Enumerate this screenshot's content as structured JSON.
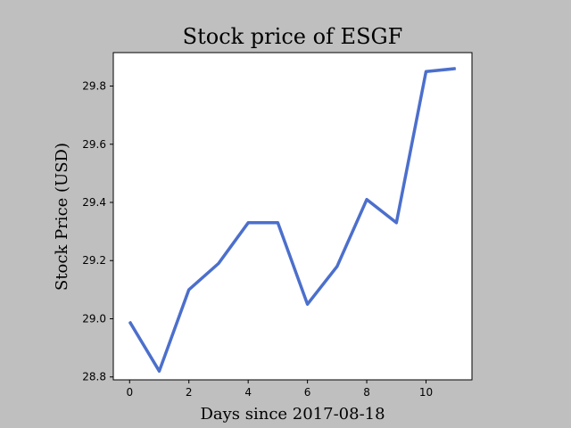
{
  "chart_data": {
    "type": "line",
    "title": "Stock price of ESGF",
    "xlabel": "Days since 2017-08-18",
    "ylabel": "Stock Price (USD)",
    "xlim": [
      -0.55,
      11.55
    ],
    "ylim": [
      28.79,
      29.915
    ],
    "xticks": [
      0,
      2,
      4,
      6,
      8,
      10
    ],
    "yticks": [
      28.8,
      29.0,
      29.2,
      29.4,
      29.6,
      29.8
    ],
    "xtick_labels": [
      "0",
      "2",
      "4",
      "6",
      "8",
      "10"
    ],
    "ytick_labels": [
      "28.8",
      "29.0",
      "29.2",
      "29.4",
      "29.6",
      "29.8"
    ],
    "grid": false,
    "series": [
      {
        "color": "#4c6fcc",
        "x": [
          0,
          1,
          2,
          3,
          4,
          5,
          6,
          7,
          8,
          9,
          10,
          11
        ],
        "y": [
          28.99,
          28.82,
          29.1,
          29.19,
          29.33,
          29.33,
          29.05,
          29.18,
          29.41,
          29.33,
          29.85,
          29.86
        ]
      }
    ]
  },
  "colors": {
    "figure_background": "#bfbfbf",
    "plot_background": "#ffffff",
    "line": "#4c6fcc"
  }
}
